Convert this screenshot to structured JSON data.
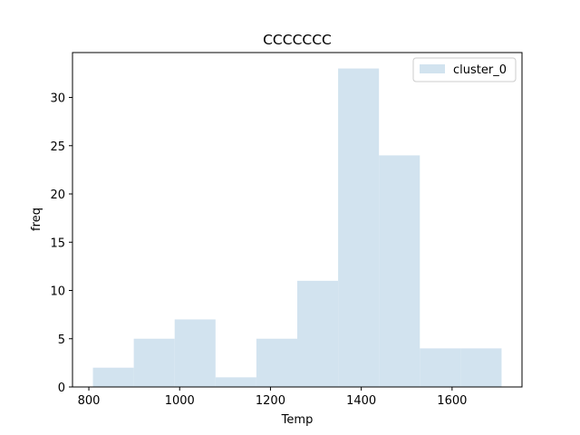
{
  "chart_data": {
    "type": "bar",
    "title": "CCCCCCC",
    "xlabel": "Temp",
    "ylabel": "freq",
    "xlim": [
      764,
      1754
    ],
    "ylim": [
      0,
      34.65
    ],
    "x_ticks": [
      800,
      1000,
      1200,
      1400,
      1600
    ],
    "y_ticks": [
      0,
      5,
      10,
      15,
      20,
      25,
      30
    ],
    "grid": false,
    "legend": "top-right",
    "series": [
      {
        "name": "cluster_0",
        "color": "#d2e3ef",
        "bin_edges": [
          809,
          899,
          989,
          1079,
          1169,
          1259,
          1349,
          1439,
          1529,
          1619,
          1709
        ],
        "values": [
          2,
          5,
          7,
          1,
          5,
          11,
          33,
          24,
          4,
          4
        ]
      }
    ]
  }
}
